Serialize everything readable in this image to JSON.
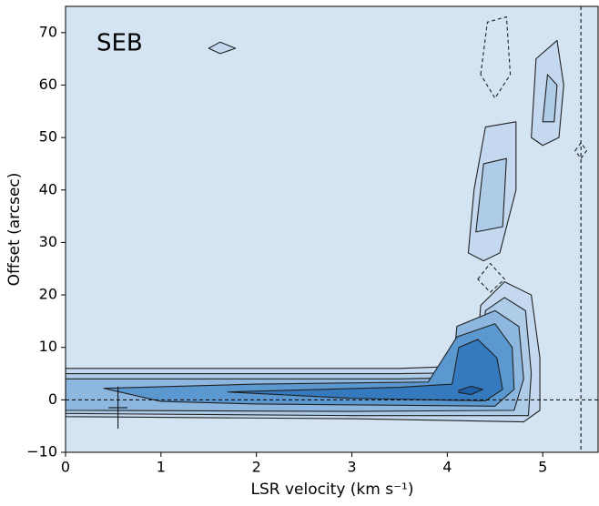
{
  "chart_data": {
    "type": "contour",
    "annotation": "SEB",
    "xlabel": "LSR velocity (km s⁻¹)",
    "ylabel": "Offset (arcsec)",
    "xlim": [
      0,
      5.58
    ],
    "ylim": [
      -10,
      75
    ],
    "xticks": [
      0,
      1,
      2,
      3,
      4,
      5
    ],
    "yticks": [
      {
        "value": -10,
        "label": "−10"
      },
      0,
      10,
      20,
      30,
      40,
      50,
      60,
      70
    ],
    "background": "#d4e4f3",
    "reference_lines": {
      "x": 5.4,
      "y": 0
    },
    "error_bar": {
      "x": 0.55,
      "y": -1.5,
      "xerr": 0.1,
      "yerr": 4
    },
    "contours": [
      {
        "fill": "#c4d9ef",
        "dashed": false,
        "points": [
          [
            0,
            6
          ],
          [
            3.5,
            6
          ],
          [
            4.3,
            6.5
          ],
          [
            4.35,
            18
          ],
          [
            4.6,
            22.5
          ],
          [
            4.88,
            20
          ],
          [
            4.97,
            8
          ],
          [
            4.97,
            -2
          ],
          [
            4.8,
            -4.2
          ],
          [
            3,
            -3.6
          ],
          [
            0,
            -3.2
          ]
        ]
      },
      {
        "fill": "#aecbe8",
        "dashed": false,
        "points": [
          [
            0,
            5
          ],
          [
            3.5,
            5
          ],
          [
            4.35,
            5.2
          ],
          [
            4.4,
            17
          ],
          [
            4.6,
            19.5
          ],
          [
            4.82,
            17
          ],
          [
            4.88,
            5
          ],
          [
            4.85,
            -3
          ],
          [
            3,
            -3
          ],
          [
            0,
            -2.6
          ]
        ]
      },
      {
        "fill": "#8db7df",
        "dashed": false,
        "points": [
          [
            0,
            4
          ],
          [
            3.5,
            4
          ],
          [
            4.05,
            4.2
          ],
          [
            4.1,
            14
          ],
          [
            4.5,
            17
          ],
          [
            4.75,
            14
          ],
          [
            4.8,
            4
          ],
          [
            4.7,
            -2
          ],
          [
            3,
            -2.2
          ],
          [
            0,
            -2
          ]
        ]
      },
      {
        "fill": "#5c98d0",
        "dashed": false,
        "points": [
          [
            0.4,
            2.2
          ],
          [
            2,
            3
          ],
          [
            3.8,
            3.4
          ],
          [
            4.1,
            12
          ],
          [
            4.5,
            14.5
          ],
          [
            4.68,
            10
          ],
          [
            4.7,
            2
          ],
          [
            4.5,
            -1.2
          ],
          [
            2,
            -0.8
          ],
          [
            1,
            -0.3
          ]
        ]
      },
      {
        "fill": "#3579be",
        "dashed": false,
        "points": [
          [
            1.7,
            1.5
          ],
          [
            3.5,
            2.4
          ],
          [
            4.05,
            3
          ],
          [
            4.12,
            10
          ],
          [
            4.32,
            11.5
          ],
          [
            4.52,
            8
          ],
          [
            4.58,
            2
          ],
          [
            4.4,
            -0.2
          ],
          [
            3,
            0.3
          ]
        ]
      },
      {
        "fill": "#1f5fa8",
        "dashed": false,
        "points": [
          [
            4.12,
            1.8
          ],
          [
            4.25,
            2.6
          ],
          [
            4.37,
            2
          ],
          [
            4.25,
            1
          ],
          [
            4.12,
            1.4
          ]
        ]
      },
      {
        "fill": "#c4d9ef",
        "dashed": false,
        "points": [
          [
            4.22,
            28
          ],
          [
            4.28,
            40
          ],
          [
            4.4,
            52
          ],
          [
            4.72,
            53
          ],
          [
            4.72,
            40
          ],
          [
            4.55,
            28
          ],
          [
            4.38,
            26.5
          ]
        ]
      },
      {
        "fill": "#aecbe8",
        "dashed": false,
        "points": [
          [
            4.3,
            32
          ],
          [
            4.38,
            45
          ],
          [
            4.62,
            46
          ],
          [
            4.58,
            33
          ]
        ]
      },
      {
        "fill": "#c4d9ef",
        "dashed": false,
        "points": [
          [
            4.88,
            50
          ],
          [
            4.93,
            65
          ],
          [
            5.15,
            68.5
          ],
          [
            5.22,
            60
          ],
          [
            5.17,
            50
          ],
          [
            5.0,
            48.5
          ]
        ]
      },
      {
        "fill": "#aecbe8",
        "dashed": false,
        "points": [
          [
            5.0,
            53
          ],
          [
            5.05,
            62
          ],
          [
            5.15,
            60
          ],
          [
            5.12,
            53
          ]
        ]
      },
      {
        "fill": "none",
        "dashed": true,
        "points": [
          [
            4.35,
            62
          ],
          [
            4.42,
            72
          ],
          [
            4.62,
            73
          ],
          [
            4.66,
            62
          ],
          [
            4.5,
            57.5
          ]
        ]
      },
      {
        "fill": "none",
        "dashed": true,
        "points": [
          [
            4.32,
            23
          ],
          [
            4.45,
            26
          ],
          [
            4.6,
            23
          ],
          [
            4.45,
            20.5
          ]
        ]
      },
      {
        "fill": "none",
        "dashed": true,
        "points": [
          [
            5.34,
            47.5
          ],
          [
            5.4,
            49
          ],
          [
            5.46,
            47.5
          ],
          [
            5.4,
            46
          ]
        ]
      },
      {
        "fill": "#c4d9ef",
        "dashed": false,
        "points": [
          [
            1.5,
            67
          ],
          [
            1.62,
            68.2
          ],
          [
            1.78,
            67
          ],
          [
            1.62,
            66
          ]
        ]
      }
    ]
  }
}
